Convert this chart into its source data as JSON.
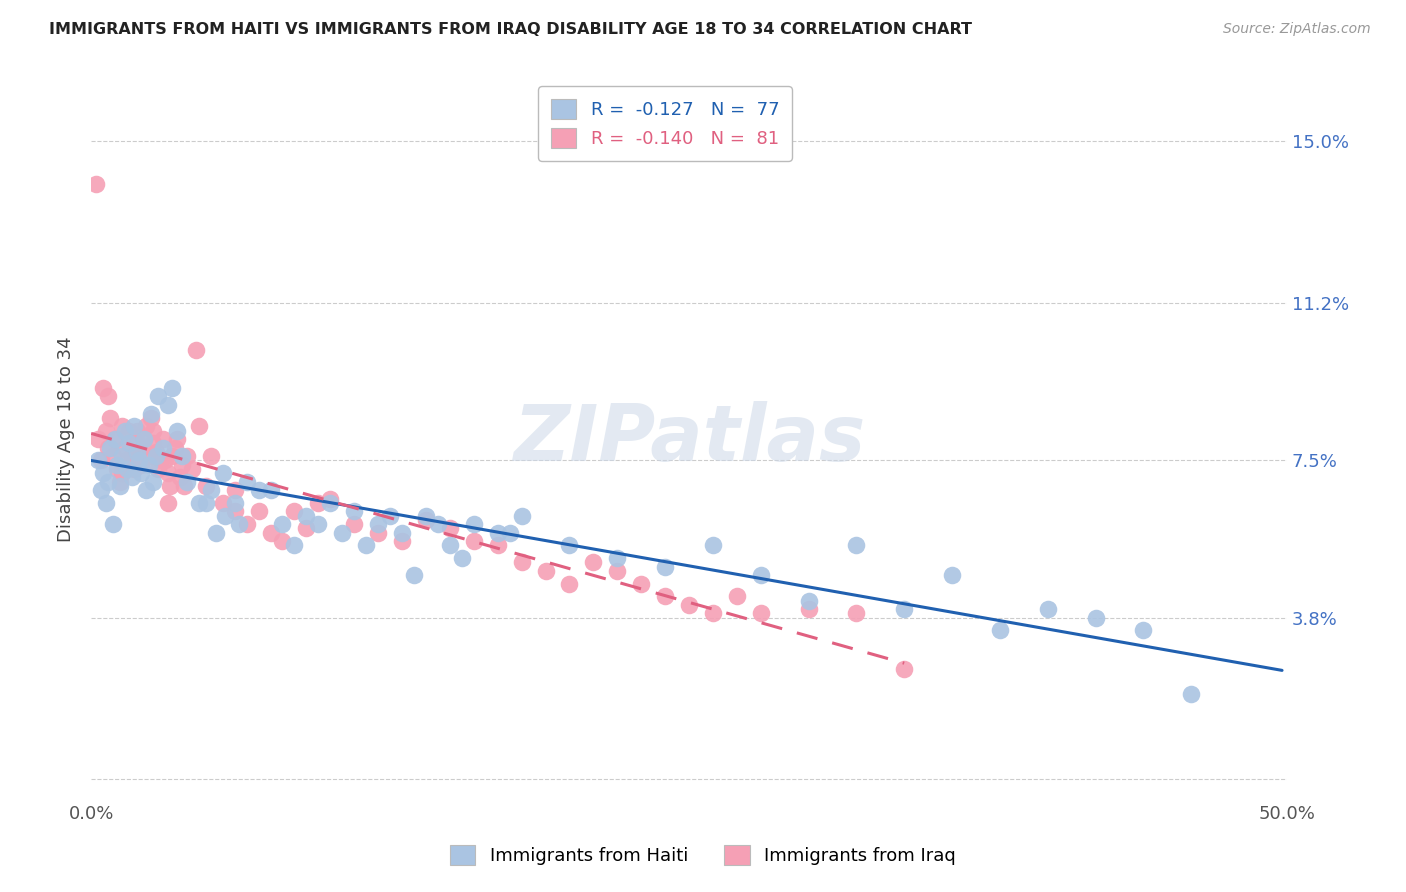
{
  "title": "IMMIGRANTS FROM HAITI VS IMMIGRANTS FROM IRAQ DISABILITY AGE 18 TO 34 CORRELATION CHART",
  "source": "Source: ZipAtlas.com",
  "ylabel": "Disability Age 18 to 34",
  "xlim": [
    0.0,
    0.5
  ],
  "ylim": [
    -0.005,
    0.165
  ],
  "yticks": [
    0.0,
    0.038,
    0.075,
    0.112,
    0.15
  ],
  "ytick_labels": [
    "",
    "3.8%",
    "7.5%",
    "11.2%",
    "15.0%"
  ],
  "xticks": [
    0.0,
    0.5
  ],
  "xtick_labels": [
    "0.0%",
    "50.0%"
  ],
  "legend_haiti_r": "-0.127",
  "legend_haiti_n": "77",
  "legend_iraq_r": "-0.140",
  "legend_iraq_n": "81",
  "haiti_color": "#aac4e2",
  "iraq_color": "#f5a0b5",
  "trendline_haiti_color": "#2060b0",
  "trendline_iraq_color": "#e06080",
  "watermark": "ZIPatlas",
  "haiti_x": [
    0.003,
    0.004,
    0.005,
    0.006,
    0.007,
    0.008,
    0.009,
    0.01,
    0.011,
    0.012,
    0.013,
    0.014,
    0.015,
    0.016,
    0.017,
    0.018,
    0.019,
    0.02,
    0.021,
    0.022,
    0.023,
    0.024,
    0.025,
    0.026,
    0.027,
    0.028,
    0.03,
    0.032,
    0.034,
    0.036,
    0.038,
    0.04,
    0.045,
    0.05,
    0.055,
    0.06,
    0.065,
    0.07,
    0.08,
    0.09,
    0.1,
    0.11,
    0.12,
    0.13,
    0.14,
    0.15,
    0.16,
    0.17,
    0.18,
    0.2,
    0.22,
    0.24,
    0.26,
    0.28,
    0.3,
    0.32,
    0.34,
    0.36,
    0.38,
    0.4,
    0.42,
    0.44,
    0.46,
    0.048,
    0.052,
    0.056,
    0.062,
    0.075,
    0.085,
    0.095,
    0.105,
    0.115,
    0.125,
    0.135,
    0.145,
    0.155,
    0.175
  ],
  "haiti_y": [
    0.075,
    0.068,
    0.072,
    0.065,
    0.07,
    0.078,
    0.06,
    0.08,
    0.074,
    0.069,
    0.076,
    0.082,
    0.073,
    0.079,
    0.071,
    0.083,
    0.077,
    0.075,
    0.072,
    0.08,
    0.068,
    0.074,
    0.086,
    0.07,
    0.076,
    0.09,
    0.078,
    0.088,
    0.092,
    0.082,
    0.076,
    0.07,
    0.065,
    0.068,
    0.072,
    0.065,
    0.07,
    0.068,
    0.06,
    0.062,
    0.065,
    0.063,
    0.06,
    0.058,
    0.062,
    0.055,
    0.06,
    0.058,
    0.062,
    0.055,
    0.052,
    0.05,
    0.055,
    0.048,
    0.042,
    0.055,
    0.04,
    0.048,
    0.035,
    0.04,
    0.038,
    0.035,
    0.02,
    0.065,
    0.058,
    0.062,
    0.06,
    0.068,
    0.055,
    0.06,
    0.058,
    0.055,
    0.062,
    0.048,
    0.06,
    0.052,
    0.058
  ],
  "iraq_x": [
    0.002,
    0.003,
    0.004,
    0.005,
    0.006,
    0.007,
    0.008,
    0.009,
    0.01,
    0.011,
    0.012,
    0.013,
    0.014,
    0.015,
    0.016,
    0.017,
    0.018,
    0.019,
    0.02,
    0.021,
    0.022,
    0.023,
    0.024,
    0.025,
    0.026,
    0.027,
    0.028,
    0.029,
    0.03,
    0.031,
    0.032,
    0.033,
    0.034,
    0.035,
    0.036,
    0.037,
    0.038,
    0.039,
    0.04,
    0.042,
    0.045,
    0.048,
    0.05,
    0.055,
    0.06,
    0.065,
    0.07,
    0.075,
    0.08,
    0.085,
    0.09,
    0.095,
    0.1,
    0.11,
    0.12,
    0.13,
    0.14,
    0.15,
    0.16,
    0.17,
    0.18,
    0.19,
    0.2,
    0.21,
    0.22,
    0.23,
    0.24,
    0.25,
    0.26,
    0.27,
    0.28,
    0.3,
    0.32,
    0.34,
    0.007,
    0.013,
    0.019,
    0.026,
    0.032,
    0.044,
    0.06
  ],
  "iraq_y": [
    0.14,
    0.08,
    0.075,
    0.092,
    0.082,
    0.078,
    0.085,
    0.076,
    0.08,
    0.073,
    0.07,
    0.083,
    0.078,
    0.075,
    0.082,
    0.076,
    0.073,
    0.079,
    0.077,
    0.074,
    0.08,
    0.083,
    0.076,
    0.085,
    0.079,
    0.077,
    0.073,
    0.075,
    0.08,
    0.075,
    0.072,
    0.069,
    0.076,
    0.078,
    0.08,
    0.071,
    0.074,
    0.069,
    0.076,
    0.073,
    0.083,
    0.069,
    0.076,
    0.065,
    0.063,
    0.06,
    0.063,
    0.058,
    0.056,
    0.063,
    0.059,
    0.065,
    0.066,
    0.06,
    0.058,
    0.056,
    0.061,
    0.059,
    0.056,
    0.055,
    0.051,
    0.049,
    0.046,
    0.051,
    0.049,
    0.046,
    0.043,
    0.041,
    0.039,
    0.043,
    0.039,
    0.04,
    0.039,
    0.026,
    0.09,
    0.072,
    0.082,
    0.082,
    0.065,
    0.101,
    0.068
  ],
  "grid_color": "#cccccc",
  "background_color": "#ffffff"
}
